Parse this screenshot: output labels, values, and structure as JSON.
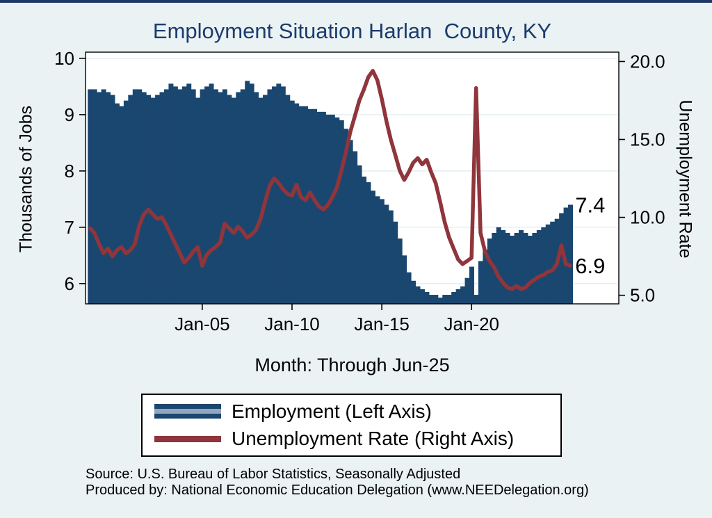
{
  "title": "Employment Situation Harlan  County, KY",
  "axis_titles": {
    "left": "Thousands of Jobs",
    "right": "Unemployment Rate",
    "x": "Month: Through Jun-25"
  },
  "legend": {
    "items": [
      {
        "label": "Employment (Left Axis)"
      },
      {
        "label": "Unemployment Rate (Right Axis)"
      }
    ]
  },
  "footer": {
    "source": "Source: U.S. Bureau of Labor Statistics, Seasonally Adjusted",
    "produced_by": "Produced by: National Economic Education Delegation (www.NEEDelegation.org)"
  },
  "colors": {
    "page_background": "#EAF2F3",
    "plot_background": "#FFFFFF",
    "bar": "#1A476F",
    "line": "#90353B",
    "title_text": "#1B3C6E",
    "top_border": "#1F3864",
    "grid": "#E3EEF0",
    "legend_bar_stripe": "#92A7BD"
  },
  "chart_data": {
    "type": "bar+line (dual axis)",
    "title": "Employment Situation Harlan  County, KY",
    "xlabel": "Month: Through Jun-25",
    "x_start": 1998.75,
    "x_step": 0.25,
    "x_end": 2025.5,
    "x_domain": [
      1998.5,
      2028.2
    ],
    "x_ticks": [
      {
        "value": 2005,
        "label": "Jan-05"
      },
      {
        "value": 2010,
        "label": "Jan-10"
      },
      {
        "value": 2015,
        "label": "Jan-15"
      },
      {
        "value": 2020,
        "label": "Jan-20"
      }
    ],
    "left_axis": {
      "label": "Thousands of Jobs",
      "ticks": [
        6,
        7,
        8,
        9,
        10
      ],
      "domain": [
        5.64,
        10.11
      ]
    },
    "right_axis": {
      "label": "Unemployment Rate",
      "tick_values": [
        5,
        10,
        15,
        20
      ],
      "tick_labels": [
        "5.0",
        "10.0",
        "15.0",
        "20.0"
      ],
      "domain": [
        4.45,
        20.6
      ]
    },
    "series": [
      {
        "name": "Employment (Left Axis)",
        "type": "bar",
        "axis": "left",
        "color": "#1A476F",
        "values": [
          9.45,
          9.45,
          9.4,
          9.45,
          9.4,
          9.35,
          9.2,
          9.15,
          9.25,
          9.35,
          9.45,
          9.45,
          9.4,
          9.35,
          9.3,
          9.35,
          9.4,
          9.45,
          9.55,
          9.5,
          9.45,
          9.5,
          9.55,
          9.45,
          9.3,
          9.45,
          9.5,
          9.55,
          9.45,
          9.4,
          9.45,
          9.35,
          9.3,
          9.4,
          9.45,
          9.6,
          9.55,
          9.4,
          9.3,
          9.35,
          9.45,
          9.5,
          9.55,
          9.5,
          9.35,
          9.25,
          9.2,
          9.15,
          9.15,
          9.1,
          9.1,
          9.05,
          9.05,
          9.0,
          9.0,
          8.95,
          8.9,
          8.75,
          8.55,
          8.35,
          8.1,
          7.9,
          7.8,
          7.65,
          7.55,
          7.5,
          7.4,
          7.3,
          7.1,
          6.8,
          6.5,
          6.2,
          6.05,
          5.95,
          5.9,
          5.85,
          5.8,
          5.8,
          5.75,
          5.8,
          5.8,
          5.85,
          5.9,
          5.95,
          6.1,
          6.3,
          5.8,
          6.4,
          6.6,
          6.8,
          6.9,
          7.0,
          6.95,
          6.9,
          6.85,
          6.9,
          6.95,
          6.9,
          6.85,
          6.9,
          6.95,
          7.0,
          7.05,
          7.1,
          7.15,
          7.25,
          7.35,
          7.4
        ]
      },
      {
        "name": "Unemployment Rate (Right Axis)",
        "type": "line",
        "axis": "right",
        "color": "#90353B",
        "values": [
          9.3,
          9.0,
          8.3,
          7.7,
          8.0,
          7.5,
          7.9,
          8.1,
          7.7,
          7.9,
          8.3,
          9.5,
          10.2,
          10.5,
          10.2,
          9.9,
          10.0,
          9.5,
          8.9,
          8.3,
          7.7,
          7.1,
          7.4,
          7.8,
          8.1,
          6.9,
          7.6,
          7.9,
          8.1,
          8.4,
          9.6,
          9.3,
          9.0,
          9.4,
          9.1,
          8.7,
          8.9,
          9.2,
          9.9,
          11.0,
          12.0,
          12.5,
          12.2,
          11.8,
          11.5,
          11.4,
          12.1,
          11.3,
          11.1,
          11.6,
          11.1,
          10.7,
          10.5,
          10.8,
          11.3,
          11.9,
          13.0,
          14.2,
          15.5,
          16.5,
          17.5,
          18.2,
          19.0,
          19.4,
          18.8,
          17.6,
          16.2,
          15.0,
          14.0,
          13.0,
          12.4,
          12.9,
          13.5,
          13.8,
          13.4,
          13.7,
          12.9,
          12.2,
          11.0,
          9.7,
          8.7,
          8.0,
          7.3,
          7.0,
          7.2,
          7.4,
          18.3,
          9.0,
          7.8,
          7.2,
          6.8,
          6.2,
          5.8,
          5.5,
          5.4,
          5.6,
          5.4,
          5.5,
          5.8,
          6.0,
          6.2,
          6.3,
          6.5,
          6.6,
          7.0,
          8.2,
          7.0,
          6.9
        ]
      }
    ],
    "annotations": [
      {
        "text": "7.4",
        "axis": "left",
        "value": 7.4
      },
      {
        "text": "6.9",
        "axis": "right",
        "value": 6.9
      }
    ]
  }
}
